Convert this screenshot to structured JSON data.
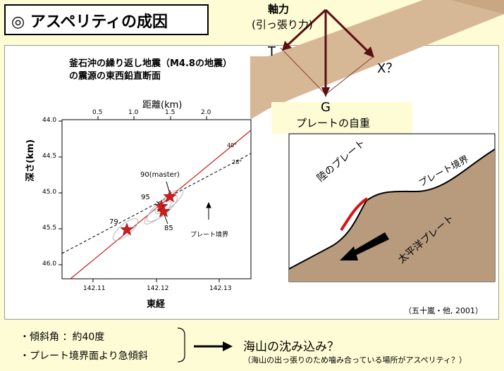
{
  "title": "◎ アスペリティの成因",
  "force_diagram": {
    "axial_label": "軸力",
    "axial_sub": "(引っ張り力)",
    "t_label": "T",
    "x_label": "X？",
    "g_label": "G",
    "g_caption": "プレートの自重"
  },
  "section_plot": {
    "caption_line1": "釜石沖の繰り返し地震（M4.8の地震）",
    "caption_line2": "の震源の東西鉛直断面",
    "top_axis_title": "距離(km)",
    "top_ticks": [
      "0.5",
      "1.0",
      "1.5",
      "2.0"
    ],
    "y_axis_title": "深さ(km)",
    "y_ticks": [
      "44.0",
      "44.5",
      "45.0",
      "45.5",
      "46.0"
    ],
    "bottom_ticks": [
      "142.11",
      "142.12",
      "142.13"
    ],
    "x_axis_title": "東経",
    "angle_40": "40°",
    "angle_28": "28°",
    "label_master": "90(master)",
    "label_95": "95",
    "label_79": "79",
    "label_85": "85",
    "boundary_label": "プレート境界"
  },
  "cross_section": {
    "land_plate": "陸のプレート",
    "boundary": "プレート境界",
    "pacific_plate": "太平洋プレート"
  },
  "credit": "（五十嵐・他, 2001）",
  "bottom": {
    "item1": "・傾斜角 ：約40度",
    "item2": "・プレート境界面より急傾斜",
    "conclusion": "海山の沈み込み？",
    "note": "（海山の出っ張りのため噛み合っている場所がアスペリティ？）"
  }
}
